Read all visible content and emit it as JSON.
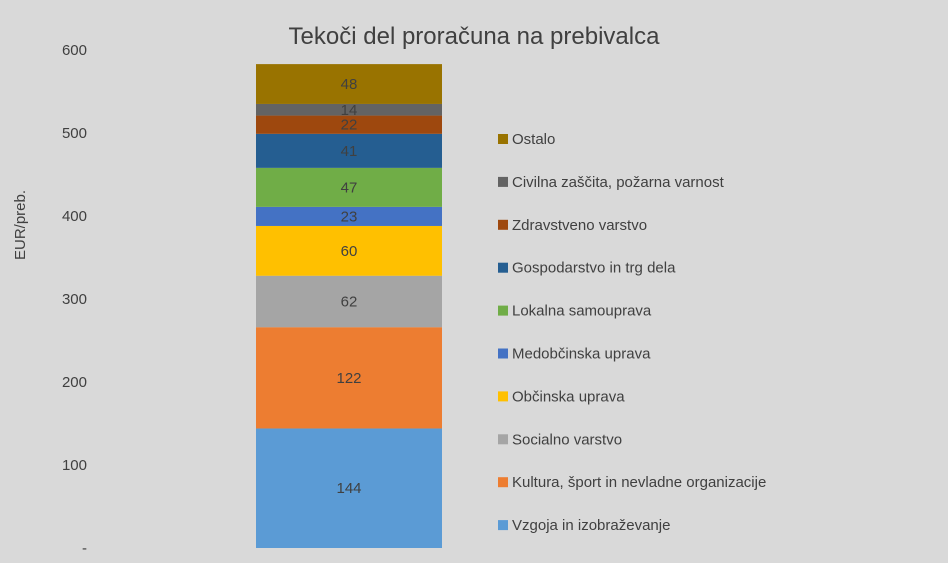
{
  "chart_data": {
    "type": "bar",
    "stacked": true,
    "title": "Tekoči del proračuna na prebivalca",
    "ylabel": "EUR/preb.",
    "ylim": [
      0,
      600
    ],
    "yticks": [
      {
        "value": 0,
        "label": "-"
      },
      {
        "value": 100,
        "label": "100"
      },
      {
        "value": 200,
        "label": "200"
      },
      {
        "value": 300,
        "label": "300"
      },
      {
        "value": 400,
        "label": "400"
      },
      {
        "value": 500,
        "label": "500"
      },
      {
        "value": 600,
        "label": "600"
      }
    ],
    "grid": false,
    "legend_position": "right",
    "series": [
      {
        "name": "Vzgoja in izobraževanje",
        "value": 144,
        "label": "144",
        "color": "#5b9bd5"
      },
      {
        "name": "Kultura, šport in nevladne organizacije",
        "value": 122,
        "label": "122",
        "color": "#ed7d31"
      },
      {
        "name": "Socialno varstvo",
        "value": 62,
        "label": "62",
        "color": "#a5a5a5"
      },
      {
        "name": "Občinska uprava",
        "value": 60,
        "label": "60",
        "color": "#ffc000"
      },
      {
        "name": "Medobčinska uprava",
        "value": 23,
        "label": "23",
        "color": "#4472c4"
      },
      {
        "name": "Lokalna samouprava",
        "value": 47,
        "label": "47",
        "color": "#70ad47"
      },
      {
        "name": "Gospodarstvo in trg dela",
        "value": 41,
        "label": "41",
        "color": "#255e91"
      },
      {
        "name": "Zdravstveno varstvo",
        "value": 22,
        "label": "22",
        "color": "#9e480e"
      },
      {
        "name": "Civilna zaščita, požarna varnost",
        "value": 14,
        "label": "14",
        "color": "#636363"
      },
      {
        "name": "Ostalo",
        "value": 48,
        "label": "48",
        "color": "#997300"
      }
    ]
  }
}
